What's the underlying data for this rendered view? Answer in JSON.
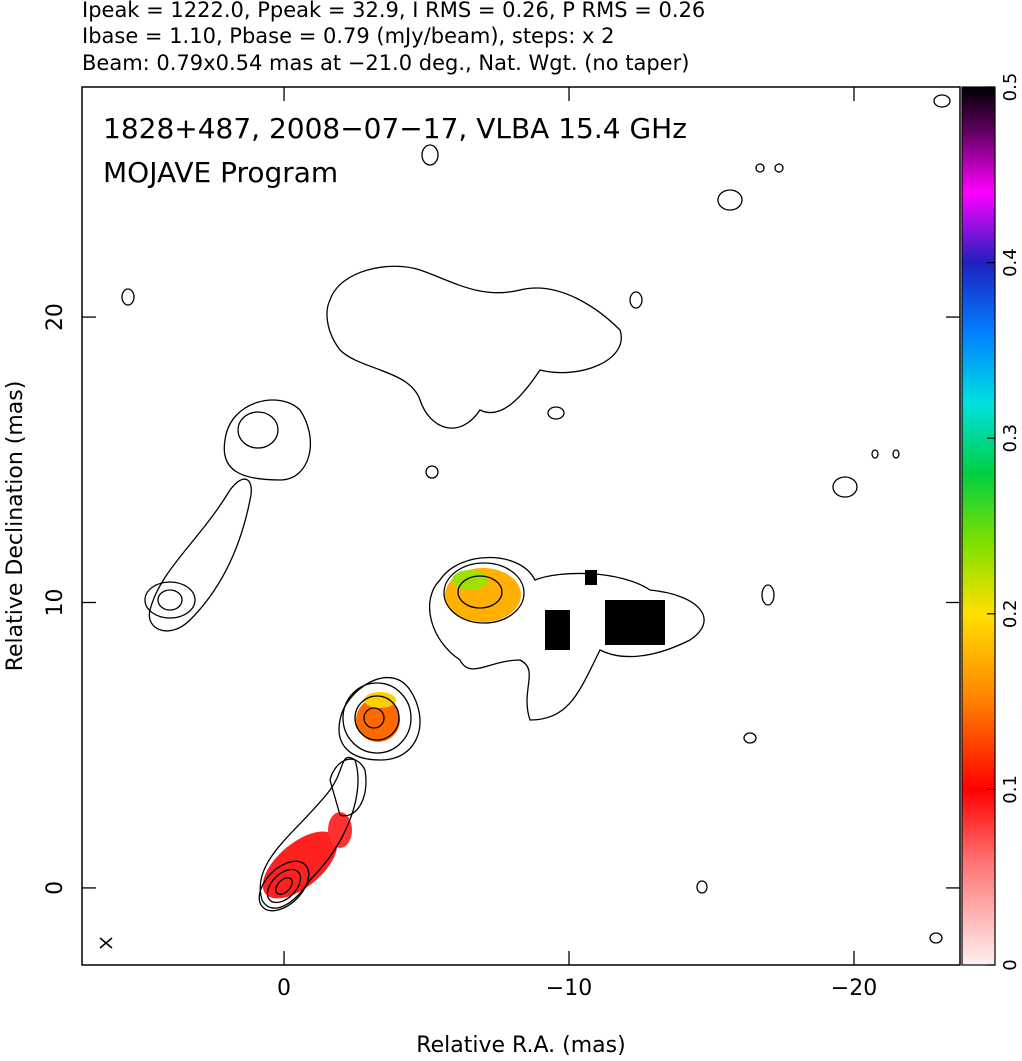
{
  "chart_data": {
    "type": "contour",
    "title": [
      "Ipeak = 1222.0, Ppeak = 32.9, I RMS = 0.26, P RMS = 0.26",
      "Ibase = 1.10, Pbase = 0.79 (mJy/beam), steps: x 2",
      "Beam: 0.79x0.54 mas at −21.0 deg., Nat. Wgt. (no taper)"
    ],
    "annotations": [
      "1828+487, 2008−07−17, VLBA 15.4 GHz",
      "MOJAVE Program"
    ],
    "xlabel": "Relative R.A. (mas)",
    "ylabel": "Relative Declination (mas)",
    "xlim": [
      7.09,
      -23.72
    ],
    "ylim": [
      -2.7,
      28.06
    ],
    "xticks": [
      0,
      {
        "value": -10,
        "label": "−10"
      },
      {
        "value": -20,
        "label": "−20"
      }
    ],
    "yticks": [
      0,
      10,
      20
    ],
    "colorbar": {
      "lim": [
        0,
        0.5
      ],
      "ticks": [
        0,
        0.1,
        0.2,
        0.3,
        0.4,
        0.5
      ]
    }
  }
}
